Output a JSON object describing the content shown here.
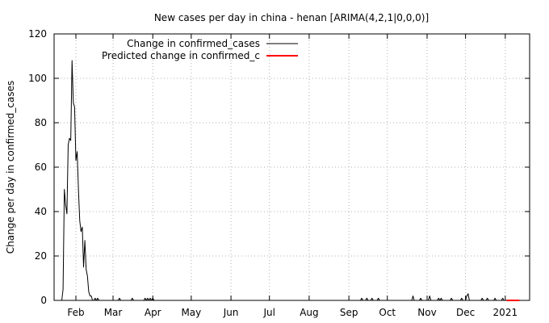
{
  "chart_data": {
    "type": "line",
    "title": "New cases per day in china - henan [ARIMA(4,2,1|0,0,0)]",
    "xlabel": "",
    "ylabel": "Change per day in confirmed_cases",
    "ylim": [
      0,
      120
    ],
    "yticks": [
      "0",
      "20",
      "40",
      "60",
      "80",
      "100",
      "120"
    ],
    "xlim": [
      "2020-01-15",
      "2021-01-20"
    ],
    "xticks": [
      {
        "date": "2020-02-01",
        "label": "Feb"
      },
      {
        "date": "2020-03-01",
        "label": "Mar"
      },
      {
        "date": "2020-04-01",
        "label": "Apr"
      },
      {
        "date": "2020-05-01",
        "label": "May"
      },
      {
        "date": "2020-06-01",
        "label": "Jun"
      },
      {
        "date": "2020-07-01",
        "label": "Jul"
      },
      {
        "date": "2020-08-01",
        "label": "Aug"
      },
      {
        "date": "2020-09-01",
        "label": "Sep"
      },
      {
        "date": "2020-10-01",
        "label": "Oct"
      },
      {
        "date": "2020-11-01",
        "label": "Nov"
      },
      {
        "date": "2020-12-01",
        "label": "Dec"
      },
      {
        "date": "2021-01-01",
        "label": "2021"
      }
    ],
    "grid": true,
    "legend_position": "top-left",
    "series": [
      {
        "name": "Change in confirmed_cases",
        "color": "#000000",
        "x": [
          "2020-01-21",
          "2020-01-22",
          "2020-01-23",
          "2020-01-24",
          "2020-01-25",
          "2020-01-26",
          "2020-01-27",
          "2020-01-28",
          "2020-01-29",
          "2020-01-30",
          "2020-01-31",
          "2020-02-01",
          "2020-02-02",
          "2020-02-03",
          "2020-02-04",
          "2020-02-05",
          "2020-02-06",
          "2020-02-07",
          "2020-02-08",
          "2020-02-09",
          "2020-02-10",
          "2020-02-11",
          "2020-02-12",
          "2020-02-13",
          "2020-02-14",
          "2020-02-15",
          "2020-02-16",
          "2020-02-17",
          "2020-02-18",
          "2020-02-19",
          "2020-02-20",
          "2020-02-21",
          "2020-02-22",
          "2020-02-23",
          "2020-02-24",
          "2020-02-25",
          "2020-02-26",
          "2020-02-27",
          "2020-02-28",
          "2020-02-29",
          "2020-03-01",
          "2020-03-02",
          "2020-03-05",
          "2020-03-06",
          "2020-03-07",
          "2020-03-15",
          "2020-03-16",
          "2020-03-17",
          "2020-03-25",
          "2020-03-26",
          "2020-03-27",
          "2020-03-28",
          "2020-03-29",
          "2020-03-30",
          "2020-03-31",
          "2020-04-01",
          "2020-04-02",
          "2020-09-10",
          "2020-09-11",
          "2020-09-12",
          "2020-09-14",
          "2020-09-15",
          "2020-09-16",
          "2020-09-18",
          "2020-09-19",
          "2020-09-20",
          "2020-09-23",
          "2020-09-24",
          "2020-09-25",
          "2020-10-20",
          "2020-10-21",
          "2020-10-22",
          "2020-10-26",
          "2020-10-27",
          "2020-10-28",
          "2020-11-02",
          "2020-11-03",
          "2020-11-04",
          "2020-11-09",
          "2020-11-10",
          "2020-11-11",
          "2020-11-12",
          "2020-11-13",
          "2020-11-19",
          "2020-11-20",
          "2020-11-21",
          "2020-11-27",
          "2020-11-28",
          "2020-11-29",
          "2020-12-01",
          "2020-12-02",
          "2020-12-03",
          "2020-12-04",
          "2020-12-05",
          "2020-12-13",
          "2020-12-14",
          "2020-12-15",
          "2020-12-17",
          "2020-12-18",
          "2020-12-19",
          "2020-12-23",
          "2020-12-24",
          "2020-12-25",
          "2020-12-29",
          "2020-12-30",
          "2020-12-31",
          "2021-01-01"
        ],
        "y": [
          0,
          5,
          50,
          43,
          39,
          70,
          73,
          72,
          108,
          89,
          87,
          63,
          67,
          50,
          36,
          31,
          33,
          15,
          27,
          14,
          11,
          4,
          2,
          2,
          0,
          0,
          1,
          0,
          1,
          0,
          0,
          0,
          0,
          0,
          0,
          0,
          0,
          0,
          0,
          0,
          0,
          0,
          0,
          1,
          0,
          0,
          1,
          0,
          0,
          1,
          0,
          1,
          0,
          1,
          0,
          1,
          0,
          0,
          1,
          0,
          0,
          1,
          0,
          0,
          1,
          0,
          0,
          1,
          0,
          0,
          2,
          0,
          0,
          1,
          0,
          0,
          2,
          0,
          0,
          1,
          0,
          1,
          0,
          0,
          1,
          0,
          0,
          1,
          0,
          0,
          2,
          3,
          0,
          0,
          0,
          1,
          0,
          0,
          1,
          0,
          0,
          1,
          0,
          0,
          1,
          0,
          0
        ]
      },
      {
        "name": "Predicted change in confirmed_c",
        "color": "#ff0000",
        "x": [
          "2021-01-02",
          "2021-01-12"
        ],
        "y": [
          0,
          0
        ]
      }
    ]
  }
}
